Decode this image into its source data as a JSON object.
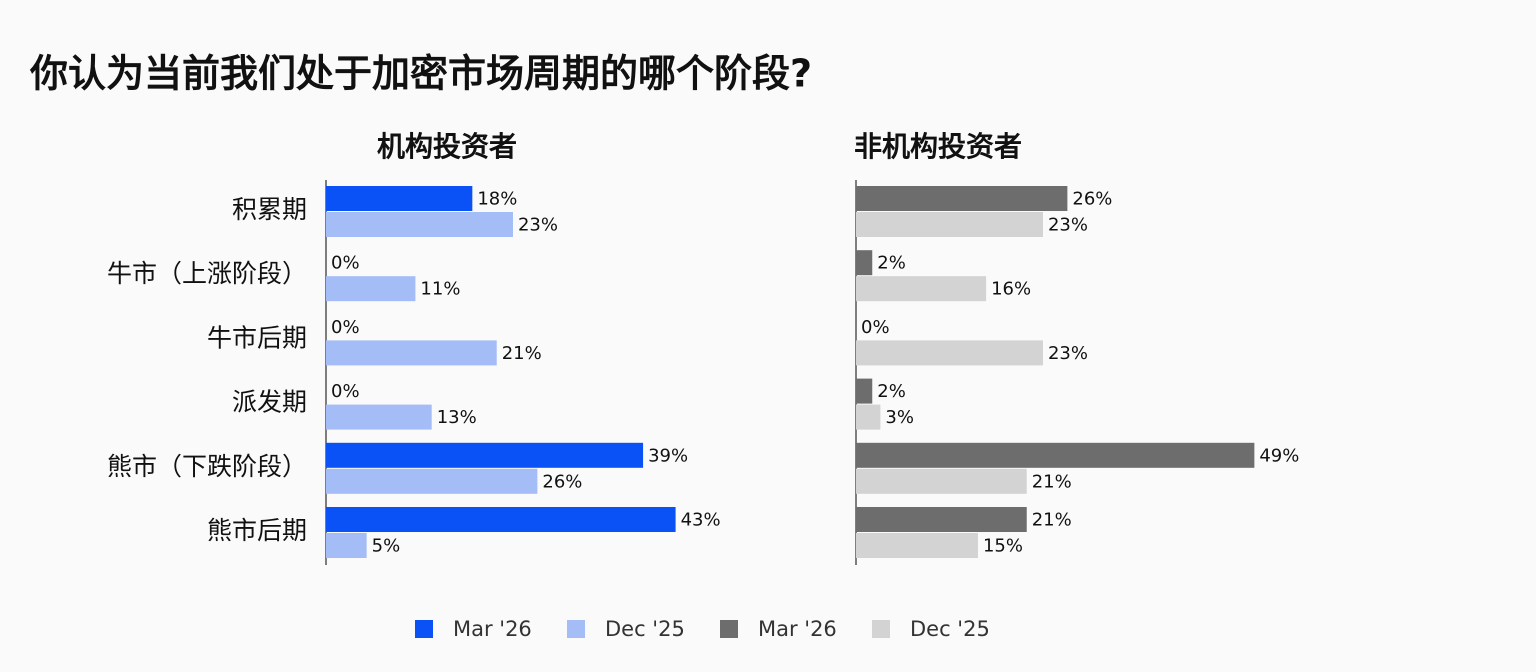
{
  "title": "你认为当前我们处于加密市场周期的哪个阶段?",
  "chart_data": [
    {
      "type": "hbar",
      "title": "机构投资者",
      "categories": [
        "积累期",
        "牛市（上涨阶段）",
        "牛市后期",
        "派发期",
        "熊市（下跌阶段）",
        "熊市后期"
      ],
      "series": [
        {
          "name": "Mar '26",
          "color": "#0a52f5",
          "values": [
            18,
            0,
            0,
            0,
            39,
            43
          ],
          "value_labels": [
            "18%",
            "0%",
            "0%",
            "0%",
            "39%",
            "43%"
          ]
        },
        {
          "name": "Dec '25",
          "color": "#a4bdf7",
          "values": [
            23,
            11,
            21,
            13,
            26,
            5
          ],
          "value_labels": [
            "23%",
            "11%",
            "21%",
            "13%",
            "26%",
            "5%"
          ]
        }
      ]
    },
    {
      "type": "hbar",
      "title": "非机构投资者",
      "series": [
        {
          "name": "Mar '26",
          "color": "#6d6d6d",
          "values": [
            26,
            2,
            0,
            2,
            49,
            21
          ],
          "value_labels": [
            "26%",
            "2%",
            "0%",
            "2%",
            "49%",
            "21%"
          ]
        },
        {
          "name": "Dec '25",
          "color": "#d3d3d3",
          "values": [
            23,
            16,
            23,
            3,
            21,
            15
          ],
          "value_labels": [
            "23%",
            "16%",
            "23%",
            "3%",
            "21%",
            "15%"
          ]
        }
      ]
    }
  ]
}
